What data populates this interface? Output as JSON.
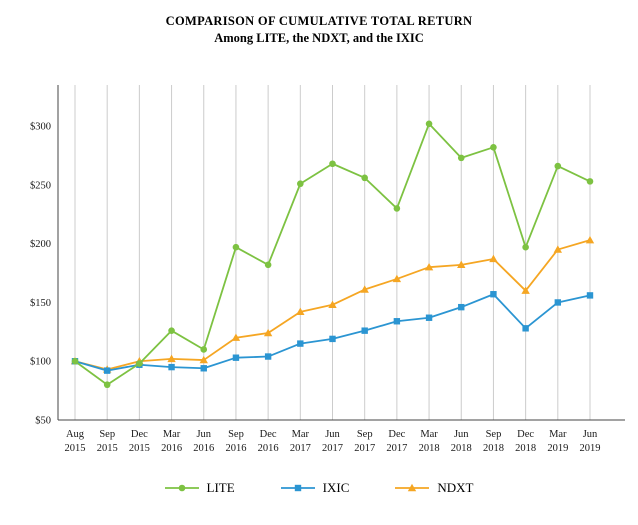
{
  "chart_data": {
    "type": "line",
    "title": "COMPARISON OF CUMULATIVE TOTAL RETURN",
    "subtitle": "Among LITE, the NDXT, and the IXIC",
    "categories": [
      "Aug 2015",
      "Sep 2015",
      "Dec 2015",
      "Mar 2016",
      "Jun 2016",
      "Sep 2016",
      "Dec 2016",
      "Mar 2017",
      "Jun 2017",
      "Sep 2017",
      "Dec 2017",
      "Mar 2018",
      "Jun 2018",
      "Sep 2018",
      "Dec 2018",
      "Mar 2019",
      "Jun 2019"
    ],
    "y_ticks": [
      "$50",
      "$100",
      "$150",
      "$200",
      "$250",
      "$300"
    ],
    "y_tick_values": [
      50,
      100,
      150,
      200,
      250,
      300
    ],
    "ylim": [
      50,
      335
    ],
    "grid": "vertical-only",
    "legend_position": "bottom-center",
    "axis_color": "#444444",
    "gridline_color": "#cccccc",
    "series": [
      {
        "name": "LITE",
        "color": "#7DC242",
        "marker": "circle",
        "values": [
          100,
          80,
          98,
          126,
          110,
          197,
          182,
          251,
          268,
          256,
          230,
          302,
          273,
          282,
          197,
          266,
          253
        ]
      },
      {
        "name": "IXIC",
        "color": "#2B95D2",
        "marker": "square",
        "values": [
          100,
          92,
          97,
          95,
          94,
          103,
          104,
          115,
          119,
          126,
          134,
          137,
          146,
          157,
          128,
          150,
          156
        ]
      },
      {
        "name": "NDXT",
        "color": "#F5A623",
        "marker": "triangle",
        "values": [
          100,
          93,
          100,
          102,
          101,
          120,
          124,
          142,
          148,
          161,
          170,
          180,
          182,
          187,
          160,
          195,
          203
        ]
      }
    ]
  }
}
